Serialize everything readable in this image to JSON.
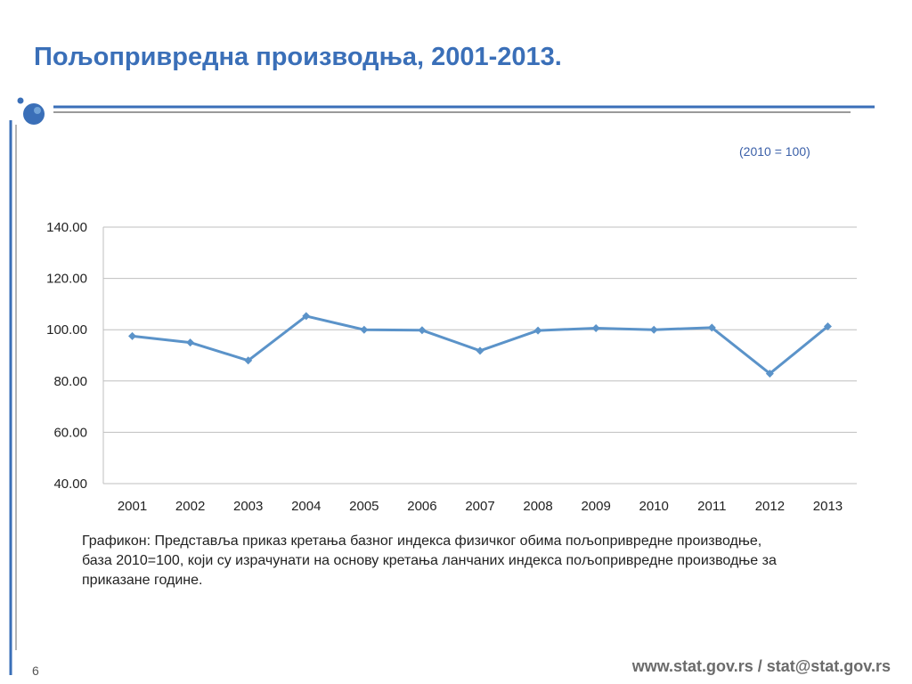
{
  "slide": {
    "title": "Пољопривредна производња, 2001-2013.",
    "base_note": "(2010 = 100)",
    "caption": "Графикон: Представља приказ кретања базног индекса физичког обима пољопривредне производње, база 2010=100, који су  израчунати на основу кретања ланчаних индекса пољопривредне производње за приказане године.",
    "page_number": "6",
    "footer": "www.stat.gov.rs / stat@stat.gov.rs"
  },
  "colors": {
    "accent": "#3a6fb8",
    "line": "#5b93c9",
    "grid": "#bfbfbf"
  },
  "chart_data": {
    "type": "line",
    "categories": [
      "2001",
      "2002",
      "2003",
      "2004",
      "2005",
      "2006",
      "2007",
      "2008",
      "2009",
      "2010",
      "2011",
      "2012",
      "2013"
    ],
    "values": [
      97.5,
      95.0,
      88.0,
      105.3,
      100.0,
      99.8,
      91.8,
      99.7,
      100.6,
      100.0,
      100.8,
      82.9,
      101.3
    ],
    "y_ticks": [
      "140.00",
      "120.00",
      "100.00",
      "80.00",
      "60.00",
      "40.00"
    ],
    "ylim": [
      40,
      140
    ],
    "title": "",
    "xlabel": "",
    "ylabel": "",
    "grid": true,
    "legend": "none"
  }
}
